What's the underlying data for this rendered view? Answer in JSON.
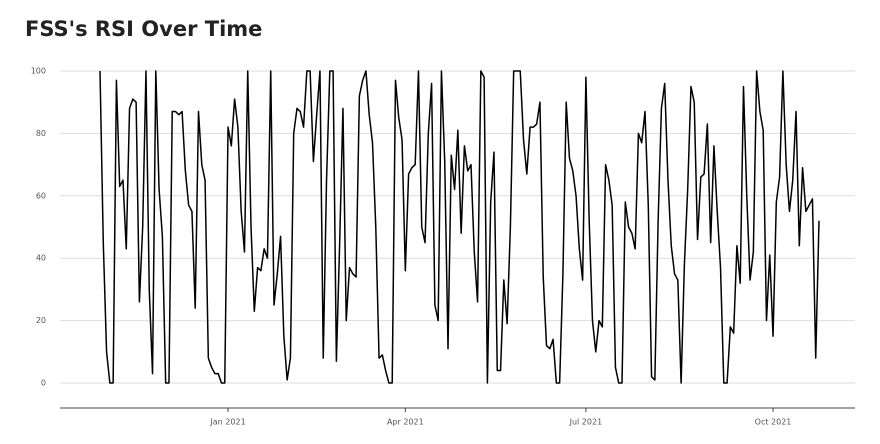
{
  "chart_data": {
    "type": "line",
    "title": "FSS's RSI Over Time",
    "categories": [
      null,
      null,
      null,
      null,
      null,
      null,
      null,
      null,
      null,
      null,
      null,
      null,
      null,
      null,
      null,
      null,
      null,
      null,
      null,
      null,
      null,
      null,
      null,
      null,
      null,
      null,
      null,
      null,
      null,
      null,
      null,
      null,
      null,
      null,
      null,
      null,
      null,
      null,
      null,
      "Jan 2021",
      null,
      null,
      null,
      null,
      null,
      null,
      null,
      null,
      null,
      null,
      null,
      null,
      null,
      null,
      null,
      null,
      null,
      null,
      null,
      null,
      null,
      null,
      null,
      null,
      null,
      null,
      null,
      null,
      null,
      null,
      null,
      null,
      null,
      null,
      null,
      null,
      null,
      null,
      null,
      null,
      null,
      null,
      null,
      null,
      null,
      null,
      null,
      null,
      null,
      null,
      null,
      null,
      null,
      "Apr 2021",
      null,
      null,
      null,
      null,
      null,
      null,
      null,
      null,
      null,
      null,
      null,
      null,
      null,
      null,
      null,
      null,
      null,
      null,
      null,
      null,
      null,
      null,
      null,
      null,
      null,
      null,
      null,
      null,
      null,
      null,
      null,
      null,
      null,
      null,
      null,
      null,
      null,
      null,
      null,
      null,
      null,
      null,
      null,
      null,
      null,
      null,
      null,
      null,
      null,
      null,
      null,
      null,
      null,
      null,
      "Jul 2021",
      null,
      null,
      null,
      null,
      null,
      null,
      null,
      null,
      null,
      null,
      null,
      null,
      null,
      null,
      null,
      null,
      null,
      null,
      null,
      null,
      null,
      null,
      null,
      null,
      null,
      null,
      null,
      null,
      null,
      null,
      null,
      null,
      null,
      null,
      null,
      null,
      null,
      null,
      null,
      null,
      null,
      null,
      null,
      null,
      null,
      null,
      null,
      null,
      null,
      null,
      null,
      null,
      null,
      null,
      null,
      null,
      "Oct 2021",
      null,
      null,
      null,
      null,
      null,
      null,
      null,
      null,
      null,
      null,
      null,
      null,
      null,
      null
    ],
    "values": [
      100,
      45,
      10,
      0,
      0,
      97,
      63,
      65,
      43,
      88,
      91,
      90,
      26,
      50,
      100,
      30,
      3,
      100,
      62,
      47,
      0,
      0,
      87,
      87,
      86,
      87,
      68,
      57,
      55,
      24,
      87,
      70,
      65,
      8,
      5,
      3,
      3,
      0,
      0,
      82,
      76,
      91,
      82,
      55,
      42,
      100,
      50,
      23,
      37,
      36,
      43,
      40,
      100,
      25,
      35,
      47,
      15,
      1,
      8,
      80,
      88,
      87,
      82,
      100,
      100,
      71,
      86,
      100,
      8,
      65,
      100,
      100,
      7,
      45,
      88,
      20,
      37,
      35,
      34,
      92,
      97,
      100,
      86,
      77,
      50,
      8,
      9,
      4,
      0,
      0,
      97,
      85,
      78,
      36,
      67,
      69,
      70,
      100,
      50,
      45,
      80,
      96,
      25,
      20,
      100,
      71,
      11,
      73,
      62,
      81,
      48,
      76,
      68,
      70,
      42,
      26,
      100,
      98,
      0,
      58,
      74,
      4,
      4,
      33,
      19,
      50,
      100,
      100,
      100,
      78,
      67,
      82,
      82,
      83,
      90,
      34,
      12,
      11,
      14,
      0,
      0,
      35,
      90,
      72,
      68,
      60,
      43,
      33,
      98,
      52,
      20,
      10,
      20,
      18,
      70,
      65,
      57,
      5,
      0,
      0,
      58,
      50,
      48,
      43,
      80,
      77,
      87,
      57,
      2,
      1,
      52,
      88,
      96,
      65,
      44,
      35,
      33,
      0,
      38,
      62,
      95,
      90,
      46,
      66,
      67,
      83,
      45,
      76,
      55,
      37,
      0,
      0,
      18,
      16,
      44,
      32,
      95,
      60,
      33,
      42,
      100,
      87,
      81,
      20,
      41,
      15,
      58,
      66,
      100,
      70,
      55,
      65,
      87,
      44,
      69,
      55,
      57,
      59,
      8,
      52
    ],
    "color": "#000000",
    "ylim": [
      -8,
      104
    ],
    "yticks": [
      0,
      20,
      40,
      60,
      80,
      100
    ],
    "grid": true
  }
}
